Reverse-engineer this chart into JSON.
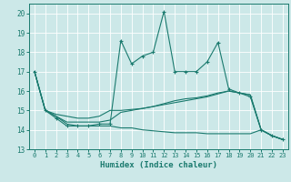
{
  "title": "",
  "xlabel": "Humidex (Indice chaleur)",
  "bg_color": "#cce8e8",
  "grid_color": "#ffffff",
  "line_color": "#1a7a6e",
  "xlim": [
    -0.5,
    23.5
  ],
  "ylim": [
    13,
    20.5
  ],
  "yticks": [
    13,
    14,
    15,
    16,
    17,
    18,
    19,
    20
  ],
  "xticks": [
    0,
    1,
    2,
    3,
    4,
    5,
    6,
    7,
    8,
    9,
    10,
    11,
    12,
    13,
    14,
    15,
    16,
    17,
    18,
    19,
    20,
    21,
    22,
    23
  ],
  "series": [
    {
      "x": [
        0,
        1,
        2,
        3,
        4,
        5,
        6,
        7,
        8,
        9,
        10,
        11,
        12,
        13,
        14,
        15,
        16,
        17,
        18,
        19,
        20,
        21,
        22,
        23
      ],
      "y": [
        17.0,
        15.0,
        14.6,
        14.2,
        14.2,
        14.2,
        14.3,
        14.3,
        18.6,
        17.4,
        17.8,
        18.0,
        20.1,
        17.0,
        17.0,
        17.0,
        17.5,
        18.5,
        16.1,
        15.9,
        15.7,
        14.0,
        13.7,
        13.5
      ],
      "marker": true
    },
    {
      "x": [
        0,
        1,
        2,
        3,
        4,
        5,
        6,
        7,
        8,
        9,
        10,
        11,
        12,
        13,
        14,
        15,
        16,
        17,
        18,
        19,
        20,
        21,
        22,
        23
      ],
      "y": [
        17.0,
        15.0,
        14.8,
        14.7,
        14.6,
        14.6,
        14.7,
        15.0,
        15.0,
        15.05,
        15.1,
        15.2,
        15.3,
        15.4,
        15.5,
        15.6,
        15.7,
        15.85,
        16.0,
        15.9,
        15.8,
        14.0,
        13.7,
        13.5
      ],
      "marker": false
    },
    {
      "x": [
        0,
        1,
        2,
        3,
        4,
        5,
        6,
        7,
        8,
        9,
        10,
        11,
        12,
        13,
        14,
        15,
        16,
        17,
        18,
        19,
        20,
        21,
        22,
        23
      ],
      "y": [
        17.0,
        15.0,
        14.7,
        14.3,
        14.2,
        14.2,
        14.2,
        14.2,
        14.1,
        14.1,
        14.0,
        13.95,
        13.9,
        13.85,
        13.85,
        13.85,
        13.8,
        13.8,
        13.8,
        13.8,
        13.8,
        14.0,
        13.7,
        13.5
      ],
      "marker": false
    },
    {
      "x": [
        0,
        1,
        2,
        3,
        4,
        5,
        6,
        7,
        8,
        9,
        10,
        11,
        12,
        13,
        14,
        15,
        16,
        17,
        18,
        19,
        20,
        21,
        22,
        23
      ],
      "y": [
        17.0,
        15.0,
        14.7,
        14.4,
        14.4,
        14.4,
        14.4,
        14.5,
        14.9,
        15.0,
        15.1,
        15.2,
        15.35,
        15.5,
        15.6,
        15.65,
        15.75,
        15.9,
        16.0,
        15.9,
        15.8,
        14.0,
        13.7,
        13.5
      ],
      "marker": false
    }
  ]
}
